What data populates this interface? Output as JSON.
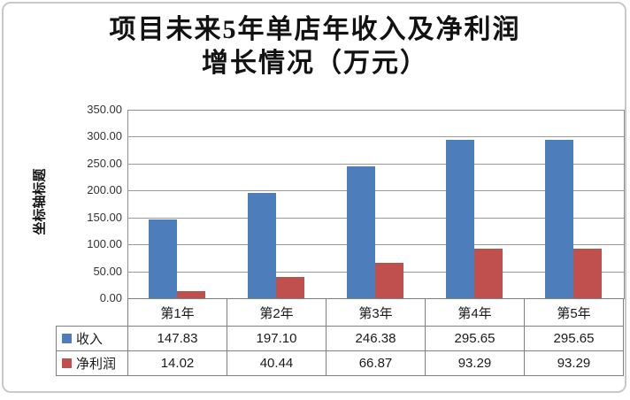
{
  "title": {
    "line1": "项目未来5年单店年收入及净利润",
    "line2": "增长情况（万元）"
  },
  "y_axis": {
    "title": "坐标轴标题",
    "ticks": [
      "350.00",
      "300.00",
      "250.00",
      "200.00",
      "150.00",
      "100.00",
      "50.00",
      "0.00"
    ]
  },
  "chart_data": {
    "type": "bar",
    "title": "项目未来5年单店年收入及净利润增长情况（万元）",
    "ylabel": "坐标轴标题",
    "xlabel": "",
    "categories": [
      "第1年",
      "第2年",
      "第3年",
      "第4年",
      "第5年"
    ],
    "series": [
      {
        "name": "收入",
        "color": "#4D7EBB",
        "values": [
          147.83,
          197.1,
          246.38,
          295.65,
          295.65
        ],
        "labels": [
          "147.83",
          "197.10",
          "246.38",
          "295.65",
          "295.65"
        ]
      },
      {
        "name": "净利润",
        "color": "#C0504D",
        "values": [
          14.02,
          40.44,
          66.87,
          93.29,
          93.29
        ],
        "labels": [
          "14.02",
          "40.44",
          "66.87",
          "93.29",
          "93.29"
        ]
      }
    ],
    "ylim": [
      0,
      350
    ],
    "ytick_step": 50,
    "grid": true,
    "legend_position": "table-left"
  },
  "colors": {
    "background": "#ffffff",
    "frame_border": "#c9c9c9",
    "gridline": "#9a9a9a",
    "plot_border": "#8f8f8f",
    "table_border": "#7f7f7f",
    "text": "#1a1a1a",
    "revenue_bar": "#4D7EBB",
    "profit_bar": "#C0504D"
  }
}
